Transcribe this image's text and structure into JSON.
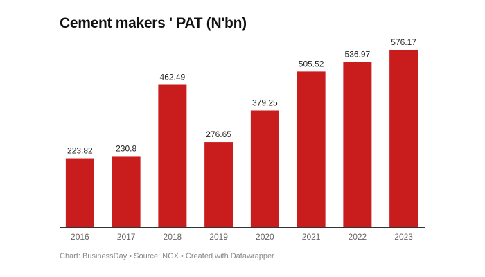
{
  "chart_data": {
    "type": "bar",
    "title": "Cement makers ' PAT (N'bn)",
    "categories": [
      "2016",
      "2017",
      "2018",
      "2019",
      "2020",
      "2021",
      "2022",
      "2023"
    ],
    "values": [
      223.82,
      230.8,
      462.49,
      276.65,
      379.25,
      505.52,
      536.97,
      576.17
    ],
    "value_labels": [
      "223.82",
      "230.8",
      "462.49",
      "276.65",
      "379.25",
      "505.52",
      "536.97",
      "576.17"
    ],
    "bar_color": "#c91c1c",
    "grid": false,
    "footer": "Chart: BusinessDay • Source: NGX • Created with Datawrapper"
  }
}
